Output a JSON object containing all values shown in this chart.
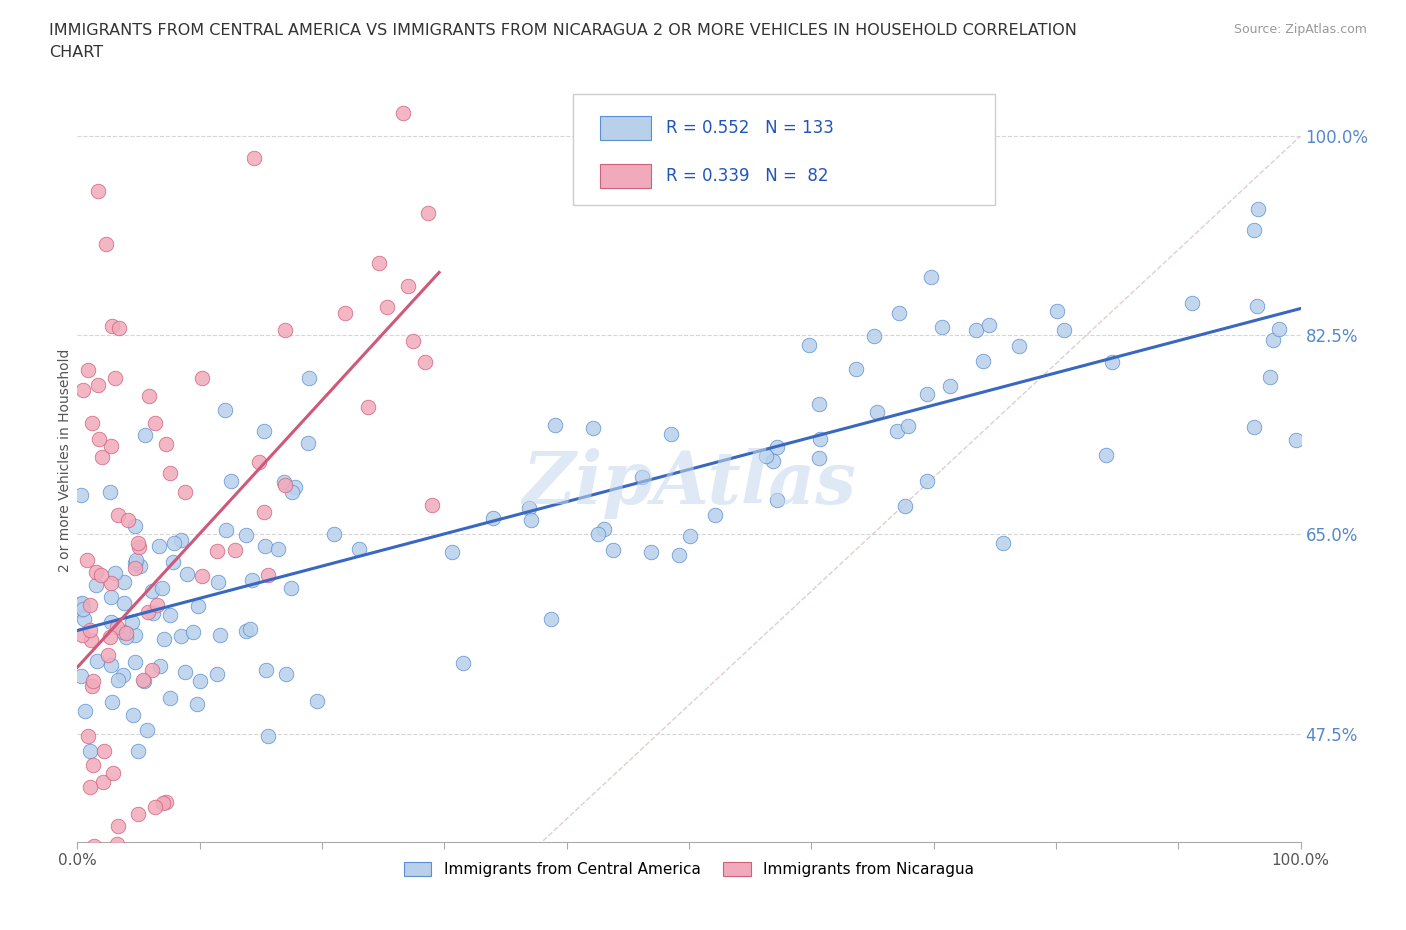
{
  "title_line1": "IMMIGRANTS FROM CENTRAL AMERICA VS IMMIGRANTS FROM NICARAGUA 2 OR MORE VEHICLES IN HOUSEHOLD CORRELATION",
  "title_line2": "CHART",
  "source": "Source: ZipAtlas.com",
  "ylabel": "2 or more Vehicles in Household",
  "xlim": [
    0.0,
    1.0
  ],
  "ylim": [
    0.38,
    1.05
  ],
  "ytick_vals": [
    0.475,
    0.65,
    0.825,
    1.0
  ],
  "ytick_labels": [
    "47.5%",
    "65.0%",
    "82.5%",
    "100.0%"
  ],
  "R_blue": 0.552,
  "N_blue": 133,
  "R_pink": 0.339,
  "N_pink": 82,
  "color_blue_fill": "#b8d0ea",
  "color_blue_edge": "#5b8fd4",
  "color_pink_fill": "#f0aabb",
  "color_pink_edge": "#d0607a",
  "line_blue_color": "#3a68c0",
  "line_pink_color": "#d05878",
  "diag_color": "#d8b8b8",
  "grid_color": "#cccccc",
  "watermark_color": "#c5d8ee",
  "background": "#ffffff",
  "legend_box_color": "#eeeeee",
  "text_color": "#333333",
  "axis_tick_color": "#aaaaaa",
  "right_tick_color": "#5588cc"
}
